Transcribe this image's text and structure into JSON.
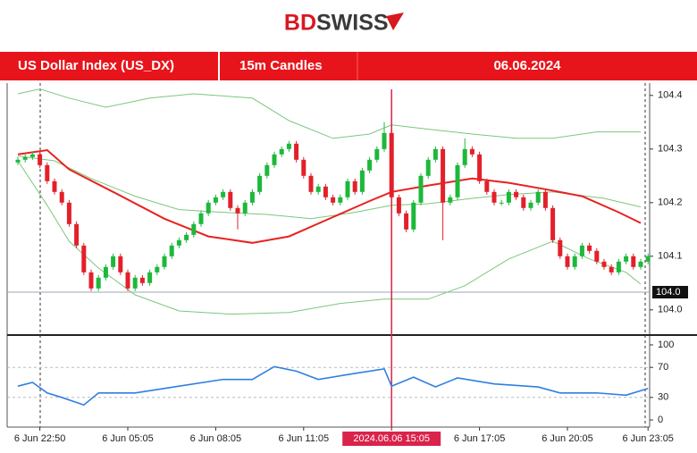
{
  "logo": [
    "BD",
    "SWISS"
  ],
  "header": {
    "instrument": "US Dollar Index (US_DX)",
    "timeframe": "15m Candles",
    "date": "06.06.2024"
  },
  "chart_data": [
    {
      "type": "candlestick",
      "categories": [
        null,
        null,
        null,
        "6 Jun 22:50",
        null,
        null,
        null,
        null,
        null,
        null,
        null,
        null,
        null,
        null,
        null,
        "6 Jun 05:05",
        null,
        null,
        null,
        null,
        null,
        null,
        null,
        null,
        null,
        null,
        null,
        "6 Jun 08:05",
        null,
        null,
        null,
        null,
        null,
        null,
        null,
        null,
        null,
        null,
        null,
        "6 Jun 11:05",
        null,
        null,
        null,
        null,
        null,
        null,
        null,
        null,
        null,
        null,
        null,
        "2024.06.06 15:05",
        null,
        null,
        null,
        null,
        null,
        null,
        null,
        null,
        null,
        null,
        null,
        "6 Jun 17:05",
        null,
        null,
        null,
        null,
        null,
        null,
        null,
        null,
        null,
        null,
        null,
        "6 Jun 20:05",
        null,
        null,
        null,
        null,
        null,
        null,
        null,
        null,
        null,
        null,
        "6 Jun 23:05"
      ],
      "highlight_index": 51,
      "open": [
        104.275,
        104.28,
        104.285,
        104.29,
        104.27,
        104.24,
        104.22,
        104.2,
        104.16,
        104.12,
        104.07,
        104.04,
        104.06,
        104.08,
        104.1,
        104.07,
        104.04,
        104.06,
        104.05,
        104.07,
        104.08,
        104.1,
        104.12,
        104.13,
        104.14,
        104.16,
        104.18,
        104.2,
        104.21,
        104.22,
        104.19,
        104.18,
        104.2,
        104.22,
        104.25,
        104.27,
        104.29,
        104.3,
        104.31,
        104.28,
        104.25,
        104.22,
        104.23,
        104.21,
        104.2,
        104.21,
        104.24,
        104.22,
        104.26,
        104.28,
        104.3,
        104.33,
        104.21,
        104.18,
        104.15,
        104.2,
        104.25,
        104.28,
        104.3,
        104.2,
        104.21,
        104.27,
        104.3,
        104.29,
        104.24,
        104.22,
        104.2,
        104.2,
        104.22,
        104.21,
        104.19,
        104.2,
        104.22,
        104.19,
        104.13,
        104.1,
        104.08,
        104.1,
        104.12,
        104.11,
        104.09,
        104.08,
        104.07,
        104.09,
        104.1,
        104.08,
        104.09
      ],
      "high": [
        104.285,
        104.29,
        104.295,
        104.295,
        104.275,
        104.245,
        104.225,
        104.205,
        104.165,
        104.125,
        104.075,
        104.065,
        104.085,
        104.105,
        104.105,
        104.075,
        104.065,
        104.065,
        104.075,
        104.085,
        104.105,
        104.125,
        104.135,
        104.145,
        104.165,
        104.185,
        104.205,
        104.215,
        104.225,
        104.225,
        104.195,
        104.205,
        104.225,
        104.255,
        104.275,
        104.295,
        104.305,
        104.315,
        104.315,
        104.285,
        104.255,
        104.235,
        104.235,
        104.215,
        104.215,
        104.245,
        104.245,
        104.265,
        104.285,
        104.305,
        104.35,
        104.34,
        104.215,
        104.185,
        104.205,
        104.255,
        104.285,
        104.305,
        104.305,
        104.215,
        104.275,
        104.32,
        104.305,
        104.295,
        104.245,
        104.225,
        104.205,
        104.225,
        104.225,
        104.215,
        104.205,
        104.225,
        104.225,
        104.195,
        104.135,
        104.105,
        104.105,
        104.125,
        104.125,
        104.115,
        104.095,
        104.085,
        104.095,
        104.105,
        104.105,
        104.095,
        104.105
      ],
      "low": [
        104.27,
        104.275,
        104.28,
        104.265,
        104.235,
        104.215,
        104.195,
        104.155,
        104.115,
        104.065,
        104.035,
        104.035,
        104.055,
        104.075,
        104.065,
        104.035,
        104.035,
        104.045,
        104.045,
        104.065,
        104.075,
        104.095,
        104.115,
        104.125,
        104.135,
        104.155,
        104.175,
        104.195,
        104.205,
        104.185,
        104.15,
        104.175,
        104.195,
        104.215,
        104.245,
        104.265,
        104.285,
        104.295,
        104.275,
        104.245,
        104.215,
        104.215,
        104.205,
        104.195,
        104.195,
        104.205,
        104.215,
        104.215,
        104.255,
        104.275,
        104.295,
        104.06,
        104.175,
        104.145,
        104.145,
        104.195,
        104.245,
        104.275,
        104.13,
        104.195,
        104.205,
        104.265,
        104.285,
        104.235,
        104.215,
        104.195,
        104.195,
        104.195,
        104.205,
        104.185,
        104.185,
        104.195,
        104.185,
        104.125,
        104.095,
        104.075,
        104.075,
        104.095,
        104.105,
        104.085,
        104.075,
        104.065,
        104.065,
        104.085,
        104.075,
        104.075,
        104.085
      ],
      "close": [
        104.28,
        104.285,
        104.29,
        104.27,
        104.24,
        104.22,
        104.2,
        104.16,
        104.12,
        104.07,
        104.04,
        104.06,
        104.08,
        104.1,
        104.07,
        104.04,
        104.06,
        104.05,
        104.07,
        104.08,
        104.1,
        104.12,
        104.13,
        104.14,
        104.16,
        104.18,
        104.2,
        104.21,
        104.22,
        104.19,
        104.18,
        104.2,
        104.22,
        104.25,
        104.27,
        104.29,
        104.3,
        104.31,
        104.28,
        104.25,
        104.22,
        104.23,
        104.21,
        104.2,
        104.21,
        104.24,
        104.22,
        104.26,
        104.28,
        104.3,
        104.33,
        104.21,
        104.18,
        104.15,
        104.2,
        104.25,
        104.28,
        104.3,
        104.2,
        104.21,
        104.27,
        104.3,
        104.29,
        104.24,
        104.22,
        104.2,
        104.2,
        104.22,
        104.21,
        104.19,
        104.2,
        104.22,
        104.19,
        104.13,
        104.1,
        104.08,
        104.1,
        104.12,
        104.11,
        104.09,
        104.08,
        104.07,
        104.09,
        104.1,
        104.08,
        104.09,
        104.1
      ],
      "up_color": "#1db83a",
      "down_color": "#e3202a",
      "overlays": [
        {
          "color": "#7cc77c",
          "x": [
            0,
            3,
            7,
            12,
            18,
            24,
            32,
            37,
            43,
            48,
            51,
            56,
            62,
            68,
            73,
            79,
            85
          ],
          "values": [
            104.403,
            104.412,
            104.395,
            104.378,
            104.395,
            104.403,
            104.395,
            104.353,
            104.32,
            104.328,
            104.345,
            104.337,
            104.328,
            104.32,
            104.32,
            104.332,
            104.332
          ]
        },
        {
          "color": "#7cc77c",
          "x": [
            0,
            5,
            10,
            16,
            22,
            28,
            34,
            40,
            46,
            51,
            56,
            62,
            67,
            73,
            80,
            85
          ],
          "values": [
            104.287,
            104.278,
            104.245,
            104.212,
            104.187,
            104.182,
            104.178,
            104.17,
            104.182,
            104.195,
            104.198,
            104.208,
            104.215,
            104.22,
            104.208,
            104.192
          ]
        },
        {
          "color": "#7cc77c",
          "x": [
            0,
            4,
            7,
            11,
            16,
            22,
            29,
            37,
            44,
            50,
            56,
            61,
            67,
            73,
            78,
            83,
            85
          ],
          "values": [
            104.278,
            104.195,
            104.128,
            104.078,
            104.028,
            103.998,
            103.992,
            103.995,
            104.012,
            104.02,
            104.02,
            104.045,
            104.095,
            104.128,
            104.095,
            104.07,
            104.048
          ]
        },
        {
          "color": "#e8211f",
          "x": [
            0,
            4,
            7,
            13,
            20,
            26,
            32,
            37,
            43,
            48,
            51,
            56,
            62,
            67,
            72,
            77,
            82,
            85
          ],
          "values": [
            104.29,
            104.298,
            104.262,
            104.22,
            104.17,
            104.137,
            104.125,
            104.137,
            104.173,
            104.203,
            104.22,
            104.232,
            104.245,
            104.237,
            104.225,
            104.212,
            104.182,
            104.162
          ]
        }
      ],
      "price_line": {
        "value": 104.033,
        "label": "104.0"
      },
      "ylim": [
        103.958,
        104.423
      ],
      "yticks": [
        104.4,
        104.3,
        104.2,
        104.1,
        {
          "value": 104,
          "label": "104.0"
        }
      ]
    },
    {
      "type": "line",
      "x": [
        0,
        2,
        4,
        6,
        9,
        11,
        16,
        22,
        28,
        32,
        35,
        38,
        41,
        46,
        50,
        51,
        54,
        57,
        60,
        65,
        71,
        74,
        79,
        83,
        86
      ],
      "values": [
        45,
        50,
        36,
        30,
        20,
        36,
        36,
        45,
        54,
        54,
        71,
        65,
        54,
        62,
        68,
        45,
        57,
        44,
        56,
        48,
        44,
        36,
        36,
        33,
        42
      ],
      "color": "#2f7fe0",
      "ylim": [
        -9.5,
        109.5
      ],
      "yticks": [
        100,
        70,
        30,
        0
      ]
    }
  ]
}
